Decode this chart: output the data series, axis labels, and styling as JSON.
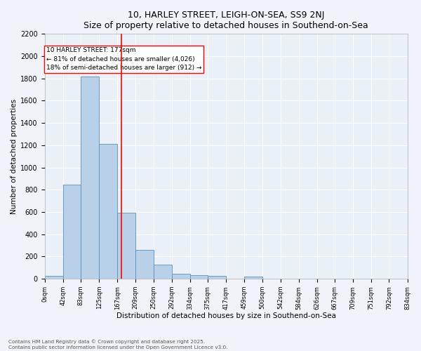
{
  "title": "10, HARLEY STREET, LEIGH-ON-SEA, SS9 2NJ",
  "subtitle": "Size of property relative to detached houses in Southend-on-Sea",
  "xlabel": "Distribution of detached houses by size in Southend-on-Sea",
  "ylabel": "Number of detached properties",
  "bar_color": "#b8d0e8",
  "bar_edge_color": "#5a8fc0",
  "background_color": "#eaf0f8",
  "grid_color": "#ffffff",
  "red_line_x": 177,
  "annotation_title": "10 HARLEY STREET: 177sqm",
  "annotation_line1": "← 81% of detached houses are smaller (4,026)",
  "annotation_line2": "18% of semi-detached houses are larger (912) →",
  "bin_edges": [
    0,
    42,
    83,
    125,
    167,
    209,
    250,
    292,
    334,
    375,
    417,
    459,
    500,
    542,
    584,
    626,
    667,
    709,
    751,
    792,
    834
  ],
  "bin_heights": [
    25,
    848,
    1820,
    1210,
    595,
    258,
    130,
    45,
    32,
    25,
    0,
    18,
    0,
    0,
    0,
    0,
    0,
    0,
    0,
    0
  ],
  "ylim": [
    0,
    2200
  ],
  "yticks": [
    0,
    200,
    400,
    600,
    800,
    1000,
    1200,
    1400,
    1600,
    1800,
    2000,
    2200
  ],
  "footnote1": "Contains HM Land Registry data © Crown copyright and database right 2025.",
  "footnote2": "Contains public sector information licensed under the Open Government Licence v3.0.",
  "fig_facecolor": "#f0f4fa"
}
